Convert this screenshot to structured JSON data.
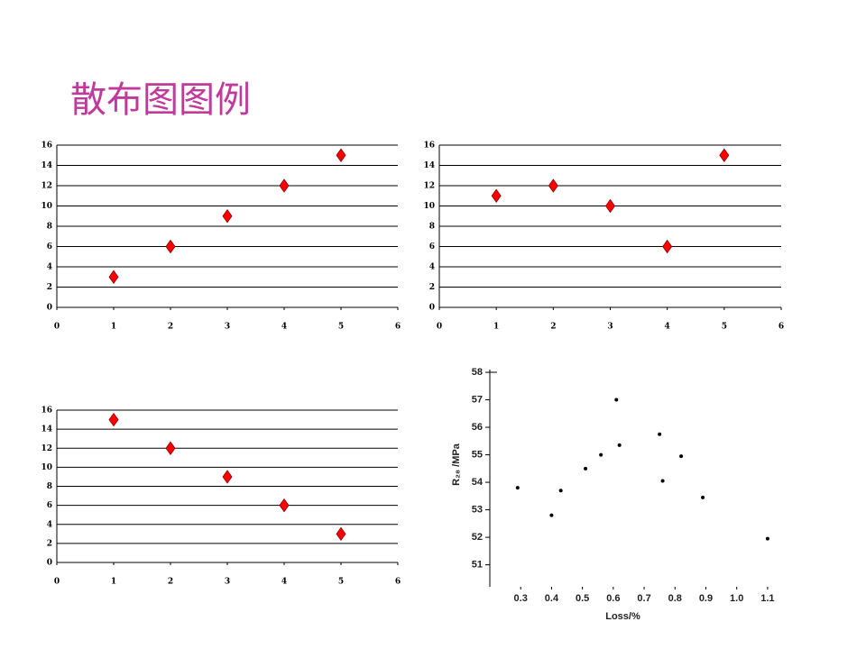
{
  "header": {
    "title": "散布图图例"
  },
  "chart_data": [
    {
      "type": "scatter",
      "marker": "diamond",
      "color": "#ff0000",
      "grid": true,
      "x": [
        1,
        2,
        3,
        4,
        5
      ],
      "values": [
        3,
        6,
        9,
        12,
        15
      ],
      "xlim": [
        0,
        6
      ],
      "xticks": [
        0,
        1,
        2,
        3,
        4,
        5,
        6
      ],
      "ylim": [
        0,
        16
      ],
      "yticks": [
        0,
        2,
        4,
        6,
        8,
        10,
        12,
        14,
        16
      ]
    },
    {
      "type": "scatter",
      "marker": "diamond",
      "color": "#ff0000",
      "grid": true,
      "x": [
        1,
        2,
        3,
        4,
        5
      ],
      "values": [
        11,
        12,
        10,
        6,
        15
      ],
      "xlim": [
        0,
        6
      ],
      "xticks": [
        0,
        1,
        2,
        3,
        4,
        5,
        6
      ],
      "ylim": [
        0,
        16
      ],
      "yticks": [
        0,
        2,
        4,
        6,
        8,
        10,
        12,
        14,
        16
      ]
    },
    {
      "type": "scatter",
      "marker": "diamond",
      "color": "#ff0000",
      "grid": true,
      "x": [
        1,
        2,
        3,
        4,
        5
      ],
      "values": [
        15,
        12,
        9,
        6,
        3
      ],
      "xlim": [
        0,
        6
      ],
      "xticks": [
        0,
        1,
        2,
        3,
        4,
        5,
        6
      ],
      "ylim": [
        0,
        16
      ],
      "yticks": [
        0,
        2,
        4,
        6,
        8,
        10,
        12,
        14,
        16
      ]
    },
    {
      "type": "scatter",
      "marker": "dot",
      "color": "#000000",
      "grid": false,
      "x_label": "Loss/%",
      "y_label": "R₂₈ /MPa",
      "x": [
        0.29,
        0.4,
        0.43,
        0.51,
        0.56,
        0.61,
        0.62,
        0.75,
        0.76,
        0.82,
        0.89,
        1.1
      ],
      "values": [
        53.8,
        52.8,
        53.7,
        54.5,
        55.0,
        57.0,
        55.35,
        55.75,
        54.05,
        54.95,
        53.45,
        51.95
      ],
      "xlim": [
        0.2,
        1.15
      ],
      "xticks": [
        0.3,
        0.4,
        0.5,
        0.6,
        0.7,
        0.8,
        0.9,
        {
          "value": 1,
          "label": "1.0"
        },
        1.1
      ],
      "ylim": [
        50.2,
        58.1
      ],
      "yticks": [
        51,
        52,
        53,
        54,
        55,
        56,
        57,
        58
      ]
    }
  ]
}
